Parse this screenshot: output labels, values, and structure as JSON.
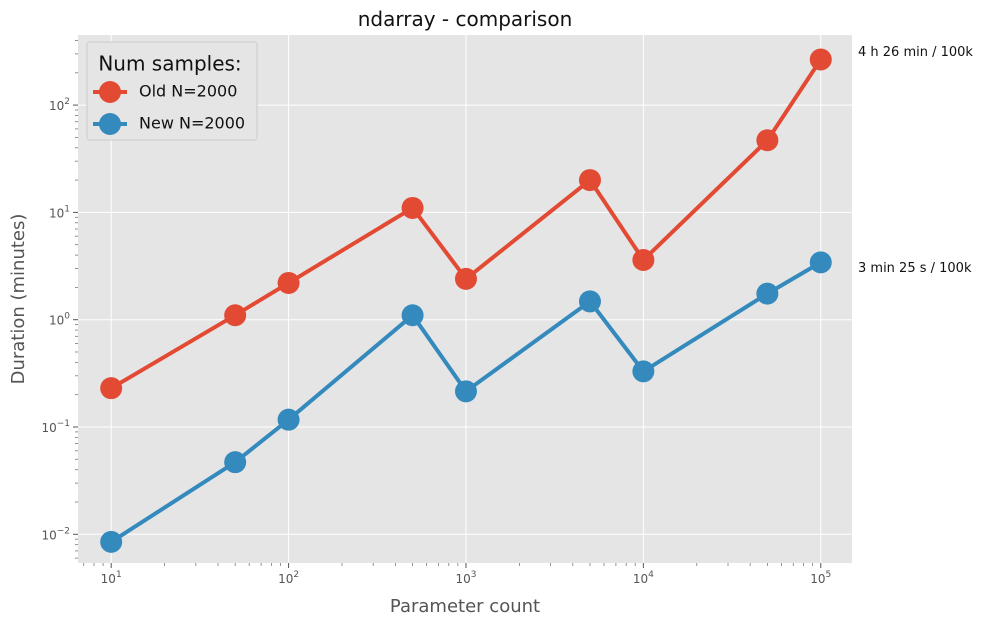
{
  "chart_data": {
    "type": "line",
    "title": "ndarray - comparison",
    "xlabel": "Parameter count",
    "ylabel": "Duration (minutes)",
    "xscale": "log",
    "yscale": "log",
    "xlim": [
      6.5,
      150000
    ],
    "ylim": [
      0.0054,
      450
    ],
    "grid": true,
    "x_ticks": [
      {
        "value": 10,
        "base": "10",
        "exp": "1"
      },
      {
        "value": 100,
        "base": "10",
        "exp": "2"
      },
      {
        "value": 1000,
        "base": "10",
        "exp": "3"
      },
      {
        "value": 10000,
        "base": "10",
        "exp": "4"
      },
      {
        "value": 100000,
        "base": "10",
        "exp": "5"
      }
    ],
    "y_ticks": [
      {
        "value": 0.01,
        "base": "10",
        "exp": "−2"
      },
      {
        "value": 0.1,
        "base": "10",
        "exp": "−1"
      },
      {
        "value": 1,
        "base": "10",
        "exp": "0"
      },
      {
        "value": 10,
        "base": "10",
        "exp": "1"
      },
      {
        "value": 100,
        "base": "10",
        "exp": "2"
      }
    ],
    "x": [
      10,
      50,
      100,
      500,
      1000,
      5000,
      10000,
      50000,
      100000
    ],
    "series": [
      {
        "name": "Old N=2000",
        "color": "#E24A33",
        "values": [
          0.23,
          1.1,
          2.2,
          11,
          2.4,
          20,
          3.6,
          47,
          266
        ]
      },
      {
        "name": "New N=2000",
        "color": "#348ABD",
        "values": [
          0.0085,
          0.047,
          0.117,
          1.1,
          0.215,
          1.48,
          0.33,
          1.75,
          3.42
        ]
      }
    ],
    "legend": {
      "title": "Num samples:",
      "placement": "top-left"
    },
    "annotations": [
      {
        "text": "4 h 26 min / 100k",
        "series": 0
      },
      {
        "text": "3 min 25 s / 100k",
        "series": 1
      }
    ]
  }
}
